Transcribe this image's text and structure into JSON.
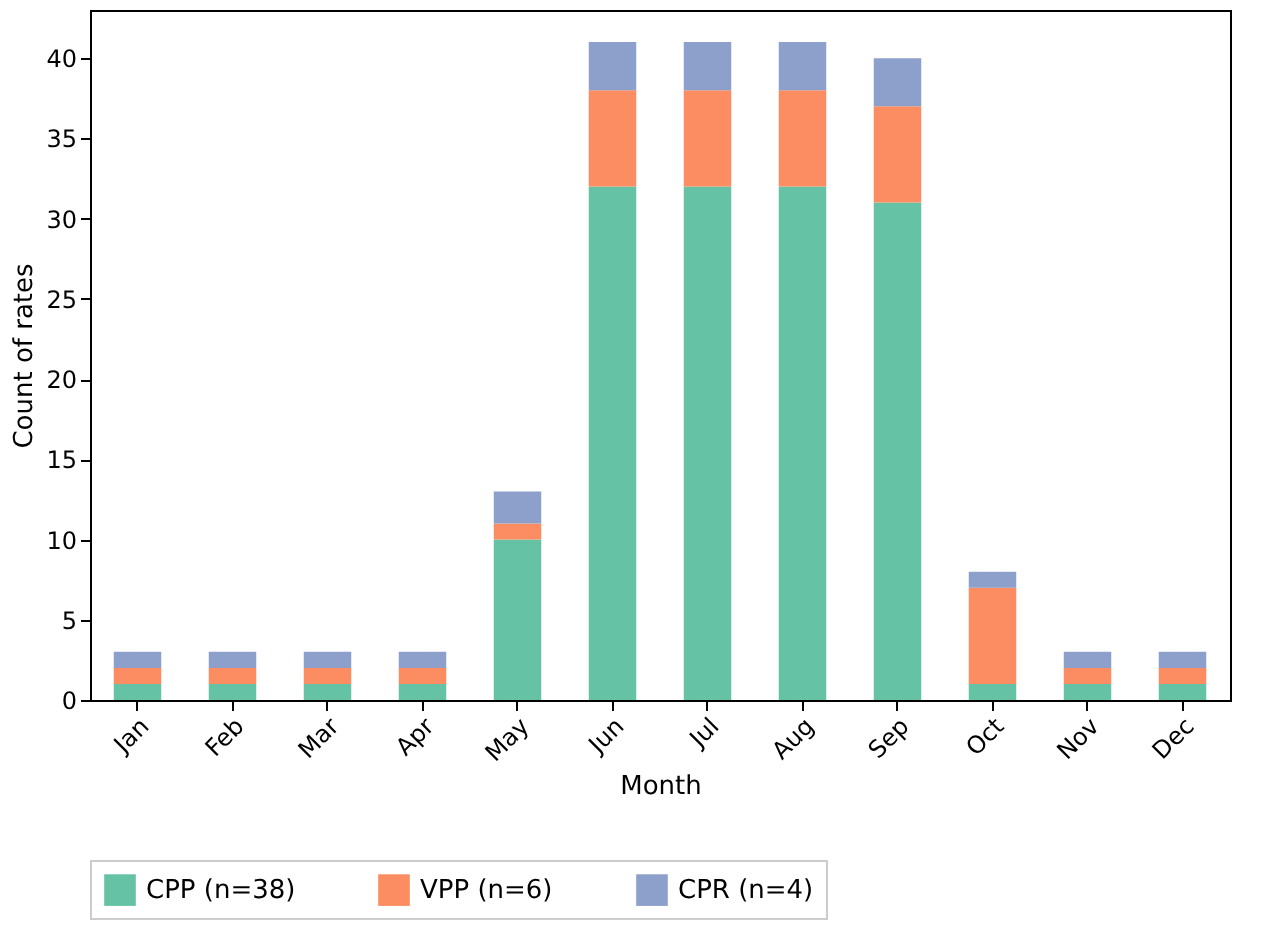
{
  "chart_data": {
    "type": "bar",
    "stacked": true,
    "xlabel": "Month",
    "ylabel": "Count of rates",
    "categories": [
      "Jan",
      "Feb",
      "Mar",
      "Apr",
      "May",
      "Jun",
      "Jul",
      "Aug",
      "Sep",
      "Oct",
      "Nov",
      "Dec"
    ],
    "series": [
      {
        "name": "CPP (n=38)",
        "color": "#66c2a5",
        "values": [
          1,
          1,
          1,
          1,
          10,
          32,
          32,
          32,
          31,
          1,
          1,
          1
        ]
      },
      {
        "name": "VPP (n=6)",
        "color": "#fc8d62",
        "values": [
          1,
          1,
          1,
          1,
          1,
          6,
          6,
          6,
          6,
          6,
          1,
          1
        ]
      },
      {
        "name": "CPR (n=4)",
        "color": "#8da0cb",
        "values": [
          1,
          1,
          1,
          1,
          2,
          3,
          3,
          3,
          3,
          1,
          1,
          1
        ]
      }
    ],
    "ylim": [
      0,
      43
    ],
    "yticks": [
      0,
      5,
      10,
      15,
      20,
      25,
      30,
      35,
      40
    ],
    "grid": false,
    "legend": "bottom"
  }
}
